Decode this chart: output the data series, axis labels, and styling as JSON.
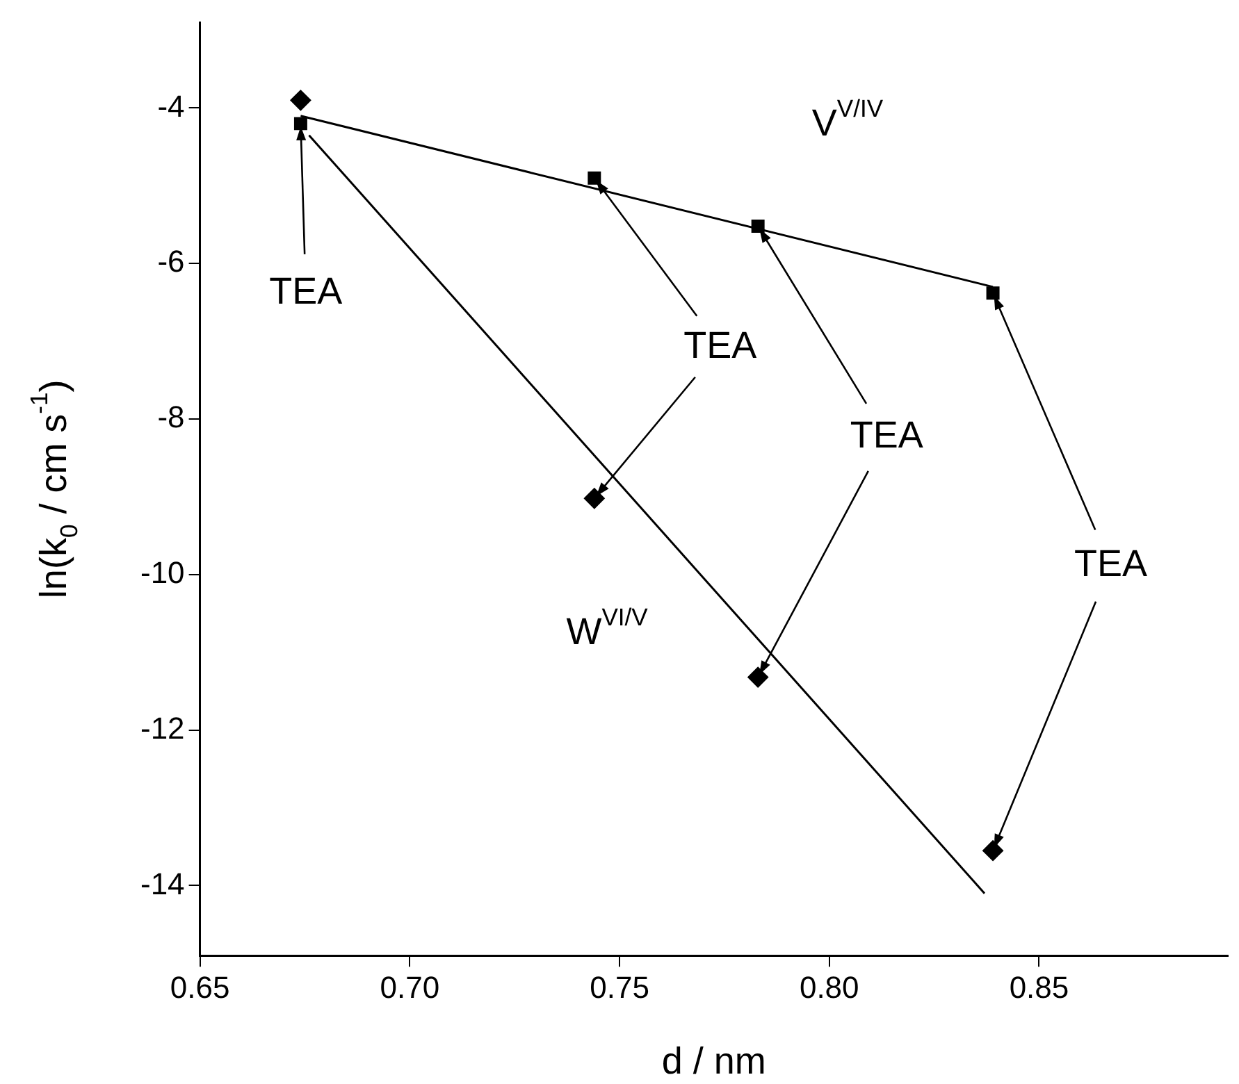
{
  "chart_data": {
    "type": "scatter",
    "xlabel": "d / nm",
    "ylabel": "ln(k$_{0}$ / cm s$^{-1}$)",
    "xlim": [
      0.65,
      0.895
    ],
    "xticks": [
      {
        "value": 0.65,
        "label": "0.65"
      },
      {
        "value": 0.7,
        "label": "0.70"
      },
      {
        "value": 0.75,
        "label": "0.75"
      },
      {
        "value": 0.8,
        "label": "0.80"
      },
      {
        "value": 0.85,
        "label": "0.85"
      }
    ],
    "ylim": [
      -14.9,
      -2.9
    ],
    "yticks": [
      -14,
      -12,
      -10,
      -8,
      -6,
      -4
    ],
    "grid": false,
    "legend": false,
    "series": [
      {
        "type": "scatter",
        "marker": "square",
        "color": "#000000",
        "x": [
          0.674,
          0.744,
          0.783,
          0.839
        ],
        "values": [
          -4.2,
          -4.9,
          -5.52,
          -6.38
        ]
      },
      {
        "type": "scatter",
        "marker": "diamond",
        "color": "#000000",
        "x": [
          0.674,
          0.744,
          0.783,
          0.839
        ],
        "values": [
          -3.9,
          -9.02,
          -11.32,
          -13.55
        ]
      },
      {
        "type": "line",
        "marker": "none",
        "color": "#000000",
        "x": [
          0.674,
          0.839
        ],
        "values": [
          -4.1,
          -6.3
        ]
      },
      {
        "type": "line",
        "marker": "none",
        "color": "#000000",
        "x": [
          0.676,
          0.837
        ],
        "values": [
          -4.35,
          -14.1
        ]
      }
    ],
    "annotations": [
      "V$^{V/IV}$",
      "W$^{VI/V}$",
      {
        "text": "TEA",
        "x": 0.674,
        "y": -4.2
      },
      {
        "text": "TEA",
        "x": 0.744,
        "y": -4.9
      },
      {
        "text": "TEA",
        "x": 0.783,
        "y": -5.52
      },
      {
        "text": "TEA",
        "x": 0.839,
        "y": -6.38
      }
    ]
  }
}
